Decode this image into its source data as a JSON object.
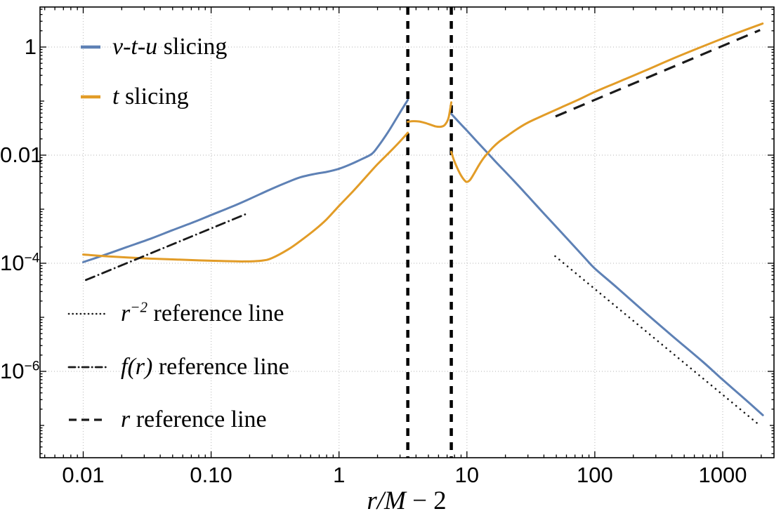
{
  "figure": {
    "background": "#ffffff",
    "xlabel": {
      "math": "r/M",
      "rest": " − 2"
    },
    "legend_plot": [
      {
        "math": "v-t-u",
        "rest": " slicing",
        "color": "#5e81b5",
        "style": "solid"
      },
      {
        "math": "t",
        "rest": " slicing",
        "color": "#e29c27",
        "style": "solid"
      }
    ],
    "legend_refs": [
      {
        "math": "r",
        "sup": "−2",
        "rest": " reference line",
        "color": "#1a1a1a",
        "style": "dotted"
      },
      {
        "math": "f(r)",
        "sup": "",
        "rest": " reference line",
        "color": "#1a1a1a",
        "style": "dashdot"
      },
      {
        "math": "r",
        "sup": "",
        "rest": " reference line",
        "color": "#1a1a1a",
        "style": "dashed"
      }
    ]
  },
  "chart_data": {
    "type": "line",
    "title": "",
    "xlabel": "r/M − 2",
    "ylabel": "",
    "x_scale": "log",
    "y_scale": "log",
    "x_range": [
      0.0046,
      2512
    ],
    "y_range": [
      2.5e-08,
      5.5
    ],
    "x_ticks": {
      "values": [
        0.01,
        0.1,
        1,
        10,
        100,
        1000
      ],
      "labels": [
        "0.01",
        "0.10",
        "1",
        "10",
        "100",
        "1000"
      ]
    },
    "y_ticks": {
      "values": [
        1,
        0.01,
        0.0001,
        1e-06
      ],
      "labels": [
        {
          "base": "1",
          "sup": ""
        },
        {
          "base": "0.01",
          "sup": ""
        },
        {
          "base": "10",
          "sup": "−4"
        },
        {
          "base": "10",
          "sup": "−6"
        }
      ]
    },
    "gridlines": {
      "x": [
        0.01,
        0.1,
        1,
        10,
        100,
        1000
      ],
      "y": [
        1,
        0.01,
        0.0001,
        1e-06
      ]
    },
    "vertical_dashed_lines": [
      3.45,
      7.55
    ],
    "series": [
      {
        "name": "v-t-u slicing",
        "color": "#5e81b5",
        "style": "solid",
        "segments": [
          [
            [
              0.01,
              0.000105
            ],
            [
              0.015,
              0.000145
            ],
            [
              0.022,
              0.0002
            ],
            [
              0.033,
              0.00028
            ],
            [
              0.05,
              0.00041
            ],
            [
              0.075,
              0.00059
            ],
            [
              0.1,
              0.00078
            ],
            [
              0.15,
              0.00115
            ],
            [
              0.2,
              0.00155
            ],
            [
              0.3,
              0.0024
            ],
            [
              0.4,
              0.0032
            ],
            [
              0.5,
              0.0039
            ],
            [
              0.65,
              0.0045
            ],
            [
              0.8,
              0.0049
            ],
            [
              1.0,
              0.0056
            ],
            [
              1.2,
              0.0066
            ],
            [
              1.5,
              0.0084
            ],
            [
              1.8,
              0.0105
            ],
            [
              2.0,
              0.014
            ],
            [
              2.4,
              0.026
            ],
            [
              2.8,
              0.047
            ],
            [
              3.1,
              0.07
            ],
            [
              3.45,
              0.105
            ]
          ],
          [
            [
              7.55,
              0.058
            ],
            [
              9,
              0.037
            ],
            [
              10,
              0.0285
            ],
            [
              12,
              0.0178
            ],
            [
              14.3,
              0.0114
            ],
            [
              17,
              0.0073
            ],
            [
              20,
              0.0049
            ],
            [
              25,
              0.0028
            ],
            [
              30,
              0.00175
            ],
            [
              40,
              0.00083
            ],
            [
              50,
              0.00047
            ],
            [
              65,
              0.00024
            ],
            [
              85,
              0.00012
            ],
            [
              100,
              8e-05
            ],
            [
              150,
              3.5e-05
            ],
            [
              250,
              1.2e-05
            ],
            [
              400,
              4.6e-06
            ],
            [
              700,
              1.5e-06
            ],
            [
              1000,
              7e-07
            ],
            [
              1400,
              3.5e-07
            ],
            [
              2060,
              1.55e-07
            ]
          ]
        ]
      },
      {
        "name": "t slicing",
        "color": "#e29c27",
        "style": "solid",
        "segments": [
          [
            [
              0.01,
              0.000145
            ],
            [
              0.015,
              0.000135
            ],
            [
              0.022,
              0.000128
            ],
            [
              0.033,
              0.000122
            ],
            [
              0.05,
              0.000118
            ],
            [
              0.08,
              0.000113
            ],
            [
              0.12,
              0.00011
            ],
            [
              0.18,
              0.000108
            ],
            [
              0.25,
              0.000112
            ],
            [
              0.3,
              0.000125
            ],
            [
              0.4,
              0.00018
            ],
            [
              0.5,
              0.00026
            ],
            [
              0.65,
              0.00042
            ],
            [
              0.8,
              0.00065
            ],
            [
              1.0,
              0.00115
            ],
            [
              1.3,
              0.0022
            ],
            [
              1.6,
              0.0038
            ],
            [
              2.0,
              0.0068
            ],
            [
              2.5,
              0.0115
            ],
            [
              3.0,
              0.018
            ],
            [
              3.45,
              0.026
            ]
          ],
          [
            [
              3.45,
              0.0415
            ],
            [
              3.8,
              0.0425
            ],
            [
              4.2,
              0.042
            ],
            [
              4.7,
              0.0395
            ],
            [
              5.2,
              0.0365
            ],
            [
              5.7,
              0.034
            ],
            [
              6.2,
              0.0335
            ],
            [
              6.6,
              0.035
            ],
            [
              6.9,
              0.0395
            ],
            [
              7.2,
              0.05
            ],
            [
              7.55,
              0.095
            ]
          ],
          [
            [
              7.55,
              0.0115
            ],
            [
              7.9,
              0.0082
            ],
            [
              8.4,
              0.0058
            ],
            [
              9.0,
              0.0042
            ],
            [
              9.6,
              0.0034
            ],
            [
              10.0,
              0.0032
            ],
            [
              10.6,
              0.0035
            ],
            [
              11.4,
              0.0046
            ],
            [
              12.4,
              0.0065
            ],
            [
              13.5,
              0.0088
            ],
            [
              14.5,
              0.0108
            ],
            [
              16,
              0.014
            ],
            [
              18,
              0.018
            ],
            [
              20,
              0.0215
            ],
            [
              25,
              0.031
            ],
            [
              30,
              0.04
            ],
            [
              40,
              0.055
            ],
            [
              55,
              0.077
            ],
            [
              75,
              0.107
            ],
            [
              100,
              0.148
            ],
            [
              150,
              0.222
            ],
            [
              250,
              0.37
            ],
            [
              400,
              0.6
            ],
            [
              700,
              1.03
            ],
            [
              1200,
              1.7
            ],
            [
              2050,
              2.72
            ]
          ]
        ]
      },
      {
        "name": "r^-2 reference line",
        "color": "#1a1a1a",
        "style": "dotted",
        "segments": [
          [
            [
              49,
              0.000135
            ],
            [
              1950,
              1e-07
            ]
          ]
        ]
      },
      {
        "name": "f(r) reference line",
        "color": "#1a1a1a",
        "style": "dashdot",
        "segments": [
          [
            [
              0.0105,
              4.9e-05
            ],
            [
              0.196,
              0.00085
            ]
          ]
        ]
      },
      {
        "name": "r reference line",
        "color": "#1a1a1a",
        "style": "dashed",
        "segments": [
          [
            [
              49.3,
              0.052
            ],
            [
              1960,
              2.06
            ]
          ]
        ]
      }
    ]
  }
}
